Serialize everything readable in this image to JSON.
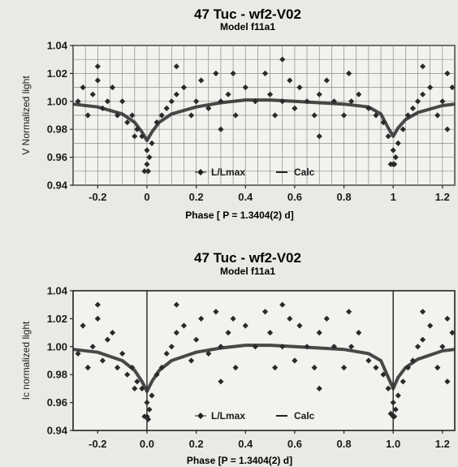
{
  "chart_data": [
    {
      "type": "scatter",
      "title": "47 Tuc  -  wf2-V02",
      "subtitle": "Model  f11a1",
      "xlabel": "Phase  [ P = 1.3404(2) d]",
      "ylabel": "V Normalized light",
      "xlim": [
        -0.3,
        1.25
      ],
      "ylim": [
        0.94,
        1.04
      ],
      "xticks": [
        -0.2,
        0,
        0.2,
        0.4,
        0.6,
        0.8,
        1,
        1.2
      ],
      "xtick_labels": [
        "-0.2",
        "0",
        "0.2",
        "0.4",
        "0.6",
        "0.8",
        "1",
        "1.2"
      ],
      "yticks": [
        0.94,
        0.96,
        0.98,
        1.0,
        1.02,
        1.04
      ],
      "ytick_labels": [
        "0.94",
        "0.96",
        "0.98",
        "1.00",
        "1.02",
        "1.04"
      ],
      "grid": true,
      "legend_position": "bottom-center",
      "series": [
        {
          "name": "L/Lmax",
          "marker": "diamond",
          "x": [
            -0.28,
            -0.26,
            -0.24,
            -0.22,
            -0.2,
            -0.18,
            -0.16,
            -0.14,
            -0.12,
            -0.1,
            -0.08,
            -0.06,
            -0.04,
            -0.02,
            0.0,
            0.0,
            0.01,
            0.02,
            0.04,
            0.06,
            0.08,
            0.1,
            0.12,
            0.15,
            0.18,
            0.2,
            0.22,
            0.25,
            0.28,
            0.3,
            0.33,
            0.36,
            0.4,
            0.44,
            0.48,
            0.5,
            0.52,
            0.55,
            0.58,
            0.6,
            0.62,
            0.65,
            0.68,
            0.7,
            0.73,
            0.76,
            0.8,
            0.83,
            0.86,
            0.9,
            0.93,
            0.96,
            0.98,
            1.0,
            1.0,
            1.01,
            1.02,
            1.04,
            1.06,
            1.08,
            1.1,
            1.12,
            1.15,
            1.18,
            1.2,
            1.22,
            1.24,
            -0.2,
            -0.05,
            0.12,
            0.35,
            0.55,
            0.82,
            1.12,
            1.22,
            -0.01,
            0.005,
            0.99,
            1.005,
            0.3,
            0.7
          ],
          "y": [
            1.0,
            1.01,
            0.99,
            1.005,
            1.015,
            0.995,
            1.0,
            1.01,
            0.99,
            1.0,
            0.985,
            0.99,
            0.98,
            0.975,
            0.965,
            0.955,
            0.96,
            0.97,
            0.985,
            0.99,
            0.995,
            1.0,
            1.005,
            1.01,
            0.99,
            1.0,
            1.015,
            0.995,
            1.02,
            1.0,
            1.005,
            0.99,
            1.01,
            1.0,
            1.02,
            1.005,
            0.99,
            1.0,
            1.015,
            0.995,
            1.01,
            1.0,
            0.99,
            1.005,
            1.015,
            1.0,
            0.99,
            1.0,
            1.005,
            0.995,
            0.99,
            0.985,
            0.975,
            0.965,
            0.955,
            0.96,
            0.97,
            0.98,
            0.99,
            0.995,
            1.0,
            1.005,
            1.01,
            0.99,
            1.0,
            1.02,
            1.01,
            1.025,
            0.975,
            1.025,
            1.02,
            1.03,
            1.02,
            1.025,
            0.98,
            0.95,
            0.95,
            0.955,
            0.955,
            0.98,
            0.975
          ]
        },
        {
          "name": "Calc",
          "x": [
            -0.3,
            -0.2,
            -0.1,
            -0.05,
            -0.02,
            0.0,
            0.02,
            0.05,
            0.1,
            0.2,
            0.3,
            0.4,
            0.5,
            0.6,
            0.7,
            0.8,
            0.9,
            0.95,
            0.98,
            1.0,
            1.02,
            1.05,
            1.1,
            1.2,
            1.25
          ],
          "y": [
            0.998,
            0.996,
            0.991,
            0.985,
            0.978,
            0.972,
            0.978,
            0.985,
            0.991,
            0.996,
            0.999,
            1.001,
            1.001,
            1.0,
            0.999,
            0.998,
            0.996,
            0.991,
            0.981,
            0.975,
            0.981,
            0.987,
            0.992,
            0.997,
            0.998
          ]
        }
      ]
    },
    {
      "type": "scatter",
      "title": "47 Tuc  -  wf2-V02",
      "subtitle": "Model  f11a1",
      "xlabel": "Phase  [P = 1.3404(2) d]",
      "ylabel": "Ic normalized light",
      "xlim": [
        -0.3,
        1.25
      ],
      "ylim": [
        0.94,
        1.04
      ],
      "xticks": [
        -0.2,
        0,
        0.2,
        0.4,
        0.6,
        0.8,
        1,
        1.2
      ],
      "xtick_labels": [
        "-0.2",
        "0.0",
        "0.2",
        "0.4",
        "0.6",
        "0.8",
        "1.0",
        "1.2"
      ],
      "yticks": [
        0.94,
        0.96,
        0.98,
        1.0,
        1.02,
        1.04
      ],
      "ytick_labels": [
        "0.94",
        "0.96",
        "0.98",
        "1.00",
        "1.02",
        "1.04"
      ],
      "grid": false,
      "legend_position": "bottom-center",
      "series": [
        {
          "name": "L/Lmax",
          "marker": "diamond",
          "x": [
            -0.28,
            -0.26,
            -0.24,
            -0.22,
            -0.2,
            -0.18,
            -0.16,
            -0.14,
            -0.12,
            -0.1,
            -0.08,
            -0.06,
            -0.04,
            -0.02,
            0.0,
            0.0,
            0.01,
            0.02,
            0.04,
            0.06,
            0.08,
            0.1,
            0.12,
            0.15,
            0.18,
            0.2,
            0.22,
            0.25,
            0.28,
            0.3,
            0.33,
            0.36,
            0.4,
            0.44,
            0.48,
            0.5,
            0.52,
            0.55,
            0.58,
            0.6,
            0.62,
            0.65,
            0.68,
            0.7,
            0.73,
            0.76,
            0.8,
            0.83,
            0.86,
            0.9,
            0.93,
            0.96,
            0.98,
            1.0,
            1.0,
            1.01,
            1.02,
            1.04,
            1.06,
            1.08,
            1.1,
            1.12,
            1.15,
            1.18,
            1.2,
            1.22,
            1.24,
            -0.2,
            -0.05,
            0.12,
            0.35,
            0.55,
            0.82,
            1.12,
            1.22,
            -0.01,
            0.005,
            0.99,
            1.005,
            0.3,
            0.7
          ],
          "y": [
            0.995,
            1.015,
            0.985,
            1.0,
            1.02,
            0.99,
            1.005,
            1.01,
            0.985,
            0.995,
            0.98,
            0.985,
            0.975,
            0.97,
            0.96,
            0.95,
            0.955,
            0.965,
            0.98,
            0.985,
            0.995,
            1.0,
            1.01,
            1.015,
            0.99,
            1.005,
            1.02,
            0.995,
            1.025,
            1.0,
            1.01,
            0.985,
            1.015,
            1.0,
            1.025,
            1.01,
            0.985,
            1.0,
            1.02,
            0.99,
            1.015,
            1.0,
            0.985,
            1.01,
            1.02,
            1.0,
            0.985,
            1.0,
            1.01,
            0.99,
            0.985,
            0.98,
            0.97,
            0.96,
            0.95,
            0.955,
            0.965,
            0.975,
            0.985,
            0.99,
            1.0,
            1.005,
            1.015,
            0.985,
            1.0,
            1.02,
            1.01,
            1.03,
            0.97,
            1.03,
            1.02,
            1.03,
            1.025,
            1.025,
            0.975,
            0.95,
            0.948,
            0.952,
            0.95,
            0.975,
            0.97
          ]
        },
        {
          "name": "Calc",
          "x": [
            -0.3,
            -0.2,
            -0.1,
            -0.05,
            -0.02,
            0.0,
            0.02,
            0.05,
            0.1,
            0.2,
            0.3,
            0.4,
            0.5,
            0.6,
            0.7,
            0.8,
            0.9,
            0.95,
            0.98,
            1.0,
            1.02,
            1.05,
            1.1,
            1.2,
            1.25
          ],
          "y": [
            0.998,
            0.996,
            0.99,
            0.983,
            0.975,
            0.968,
            0.975,
            0.983,
            0.99,
            0.996,
            0.999,
            1.001,
            1.001,
            1.0,
            0.999,
            0.998,
            0.995,
            0.99,
            0.978,
            0.97,
            0.978,
            0.985,
            0.991,
            0.997,
            0.998
          ]
        }
      ]
    }
  ]
}
